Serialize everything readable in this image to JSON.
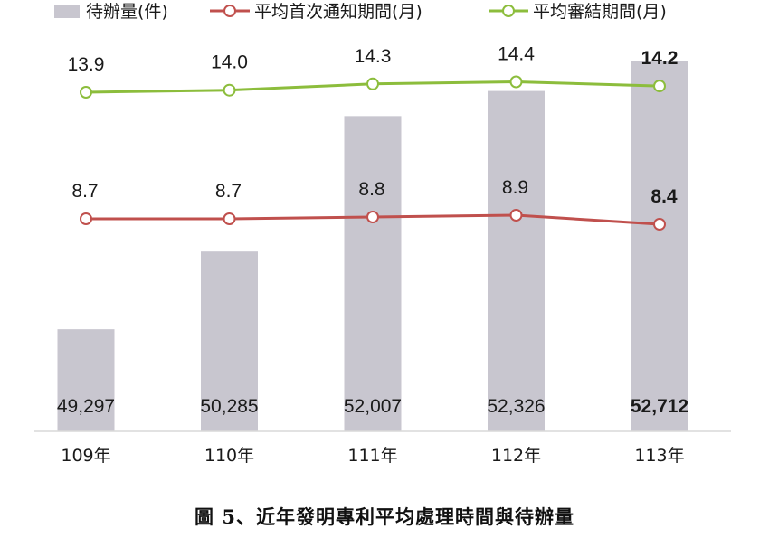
{
  "caption": {
    "prefix": "圖",
    "number": "5",
    "text": "、近年發明專利平均處理時間與待辦量"
  },
  "chart_data": {
    "type": "bar",
    "categories": [
      "109年",
      "110年",
      "111年",
      "112年",
      "113年"
    ],
    "series": [
      {
        "name": "待辦量(件)",
        "kind": "bar",
        "color": "#c8c6cf",
        "values": [
          49297,
          50285,
          52007,
          52326,
          52712
        ],
        "labels": [
          "49,297",
          "50,285",
          "52,007",
          "52,326",
          "52,712"
        ]
      },
      {
        "name": "平均首次通知期間(月)",
        "kind": "line",
        "color": "#c0504d",
        "values": [
          8.7,
          8.7,
          8.8,
          8.9,
          8.4
        ],
        "labels": [
          "8.7",
          "8.7",
          "8.8",
          "8.9",
          "8.4"
        ]
      },
      {
        "name": "平均審結期間(月)",
        "kind": "line",
        "color": "#8cbd3c",
        "values": [
          13.9,
          14.0,
          14.3,
          14.4,
          14.2
        ],
        "labels": [
          "13.9",
          "14.0",
          "14.3",
          "14.4",
          "14.2"
        ]
      }
    ],
    "highlight_last": true,
    "legend_position": "top",
    "grid": false
  }
}
